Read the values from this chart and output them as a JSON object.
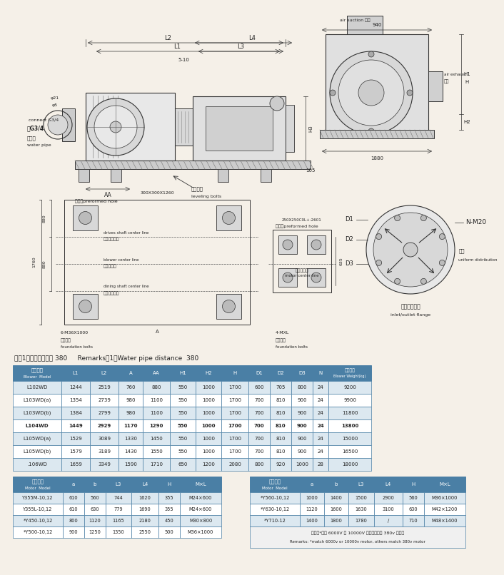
{
  "background_color": "#f5f0e8",
  "remarks_text": "注：1、输水管间距为 380     Remarks，1、Water pipe distance  380",
  "blower_table": {
    "header1_cn": "风机型号",
    "header1_en": "Blower  Model",
    "columns": [
      "L1",
      "L2",
      "A",
      "AA",
      "H1",
      "H2",
      "H",
      "D1",
      "D2",
      "D3",
      "N",
      "WEIGHT"
    ],
    "rows": [
      [
        "L102WD",
        "1244",
        "2519",
        "760",
        "880",
        "550",
        "1000",
        "1700",
        "600",
        "705",
        "800",
        "24",
        "9200"
      ],
      [
        "L103WD(a)",
        "1354",
        "2739",
        "980",
        "1100",
        "550",
        "1000",
        "1700",
        "700",
        "810",
        "900",
        "24",
        "9900"
      ],
      [
        "L103WD(b)",
        "1384",
        "2799",
        "980",
        "1100",
        "550",
        "1000",
        "1700",
        "700",
        "810",
        "900",
        "24",
        "11800"
      ],
      [
        "L104WD",
        "1449",
        "2929",
        "1170",
        "1290",
        "550",
        "1000",
        "1700",
        "700",
        "810",
        "900",
        "24",
        "13800"
      ],
      [
        "L105WD(a)",
        "1529",
        "3089",
        "1330",
        "1450",
        "550",
        "1000",
        "1700",
        "700",
        "810",
        "900",
        "24",
        "15000"
      ],
      [
        "L105WD(b)",
        "1579",
        "3189",
        "1430",
        "1550",
        "550",
        "1000",
        "1700",
        "700",
        "810",
        "900",
        "24",
        "16500"
      ],
      [
        ".106WD",
        "1659",
        "3349",
        "1590",
        "1710",
        "650",
        "1200",
        "2080",
        "800",
        "920",
        "1000",
        "28",
        "18000"
      ]
    ],
    "bold_rows": [
      3
    ],
    "header_bg": "#4a7fa5",
    "header_fg": "#ffffff",
    "row_bg_odd": "#ffffff",
    "row_bg_even": "#dce8f0",
    "border_color": "#4a7fa5"
  },
  "motor_table_left": {
    "header1_cn": "电机型号",
    "header1_en": "Motor  Model",
    "columns": [
      "a",
      "b",
      "L3",
      "L4",
      "H",
      "MxL"
    ],
    "rows": [
      [
        "Y355M-10,12",
        "610",
        "560",
        "744",
        "1620",
        "355",
        "M24x600"
      ],
      [
        "Y355L-10,12",
        "610",
        "630",
        "779",
        "1690",
        "355",
        "M24x600"
      ],
      [
        "*Y450-10,12",
        "800",
        "1120",
        "1165",
        "2180",
        "450",
        "M30x800"
      ],
      [
        "*Y500-10,12",
        "900",
        "1250",
        "1350",
        "2550",
        "500",
        "M36x1000"
      ]
    ],
    "header_bg": "#4a7fa5",
    "header_fg": "#ffffff",
    "row_bg_odd": "#ffffff",
    "row_bg_even": "#dce8f0",
    "border_color": "#4a7fa5"
  },
  "motor_table_right": {
    "header1_cn": "电机型号",
    "header1_en": "Motor  Model",
    "columns": [
      "a",
      "b",
      "L3",
      "L4",
      "H",
      "MxL"
    ],
    "rows": [
      [
        "*Y560-10,12",
        "1000",
        "1400",
        "1500",
        "2900",
        "560",
        "M36x1000"
      ],
      [
        "*Y630-10,12",
        "1120",
        "1600",
        "1630",
        "3100",
        "630",
        "M42x1200"
      ],
      [
        "*Y710-12",
        "1400",
        "1800",
        "1780",
        "/",
        "710",
        "M48x1400"
      ]
    ],
    "remark_cn": "注：带*适用 6000V 或 10000V 电机，其余为 380v 电机。",
    "remark_en": "Remarks: *match 6000v or 10000v motor, others match 380v motor",
    "header_bg": "#4a7fa5",
    "header_fg": "#ffffff",
    "row_bg_odd": "#ffffff",
    "row_bg_even": "#dce8f0",
    "border_color": "#4a7fa5"
  }
}
